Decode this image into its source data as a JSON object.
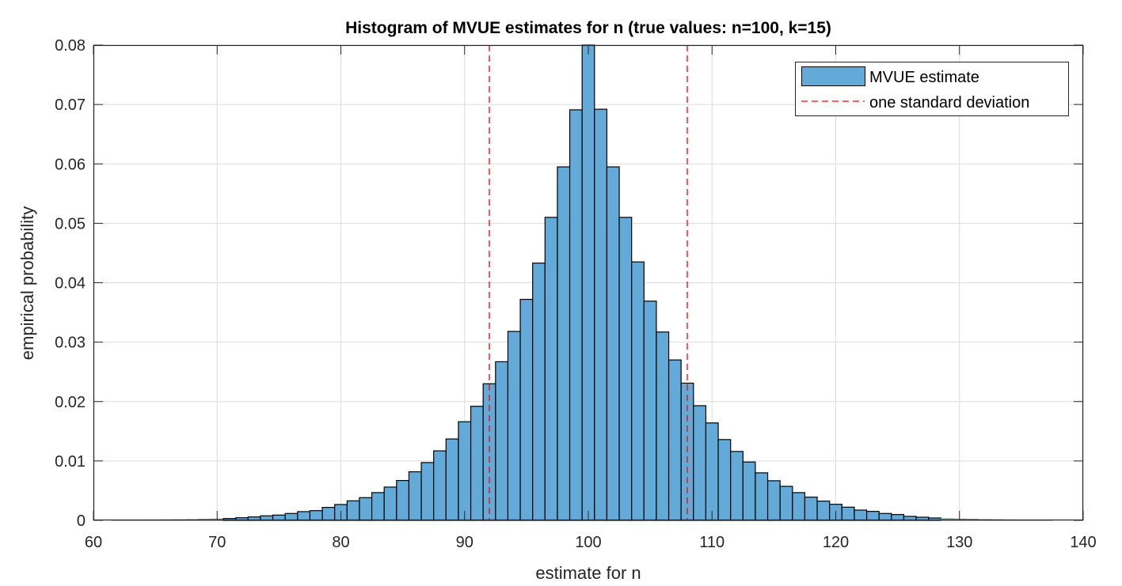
{
  "chart_data": {
    "type": "bar",
    "title": "Histogram of MVUE estimates for n (true values: n=100, k=15)",
    "xlabel": "estimate for n",
    "ylabel": "empirical probability",
    "xlim": [
      60,
      140
    ],
    "ylim": [
      0,
      0.08
    ],
    "grid": true,
    "xticks": [
      "60",
      "70",
      "80",
      "90",
      "100",
      "110",
      "120",
      "130",
      "140"
    ],
    "yticks": [
      "0",
      "0.01",
      "0.02",
      "0.03",
      "0.04",
      "0.05",
      "0.06",
      "0.07",
      "0.08"
    ],
    "bin_width": 1,
    "bin_centers": [
      62,
      63,
      64,
      65,
      66,
      67,
      68,
      69,
      70,
      71,
      72,
      73,
      74,
      75,
      76,
      77,
      78,
      79,
      80,
      81,
      82,
      83,
      84,
      85,
      86,
      87,
      88,
      89,
      90,
      91,
      92,
      93,
      94,
      95,
      96,
      97,
      98,
      99,
      100,
      101,
      102,
      103,
      104,
      105,
      106,
      107,
      108,
      109,
      110,
      111,
      112,
      113,
      114,
      115,
      116,
      117,
      118,
      119,
      120,
      121,
      122,
      123,
      124,
      125,
      126,
      127,
      128,
      129,
      130,
      131,
      132,
      133,
      134,
      135,
      136,
      137
    ],
    "series": [
      {
        "name": "MVUE estimate",
        "color": "#64aad8",
        "edge_color": "#000000",
        "values": [
          1e-05,
          2e-05,
          4e-05,
          6e-05,
          8e-05,
          0.0001,
          0.00013,
          0.00018,
          0.00022,
          0.00031,
          0.00044,
          0.00058,
          0.00076,
          0.00089,
          0.00116,
          0.00147,
          0.00164,
          0.00218,
          0.00267,
          0.00329,
          0.00382,
          0.00467,
          0.0056,
          0.00671,
          0.00818,
          0.00973,
          0.0117,
          0.0137,
          0.0166,
          0.0192,
          0.023,
          0.0267,
          0.0318,
          0.0372,
          0.0433,
          0.051,
          0.0595,
          0.0691,
          0.08,
          0.0692,
          0.0595,
          0.051,
          0.0435,
          0.0369,
          0.0317,
          0.027,
          0.0231,
          0.0193,
          0.0164,
          0.0136,
          0.0116,
          0.00982,
          0.008,
          0.00667,
          0.00573,
          0.00467,
          0.00391,
          0.00324,
          0.00271,
          0.00222,
          0.00173,
          0.00151,
          0.00116,
          0.00098,
          0.00067,
          0.00053,
          0.0004,
          0.00027,
          0.00022,
          0.00018,
          0.00013,
          0.0001,
          7e-05,
          5e-05,
          3e-05,
          1e-05
        ]
      },
      {
        "name": "one standard deviation",
        "type": "vline",
        "color": "#ff0000",
        "style": "dashed",
        "x": [
          92,
          108
        ]
      }
    ],
    "legend": {
      "placement": "top-right",
      "entries": [
        "MVUE estimate",
        "one standard deviation"
      ]
    }
  }
}
